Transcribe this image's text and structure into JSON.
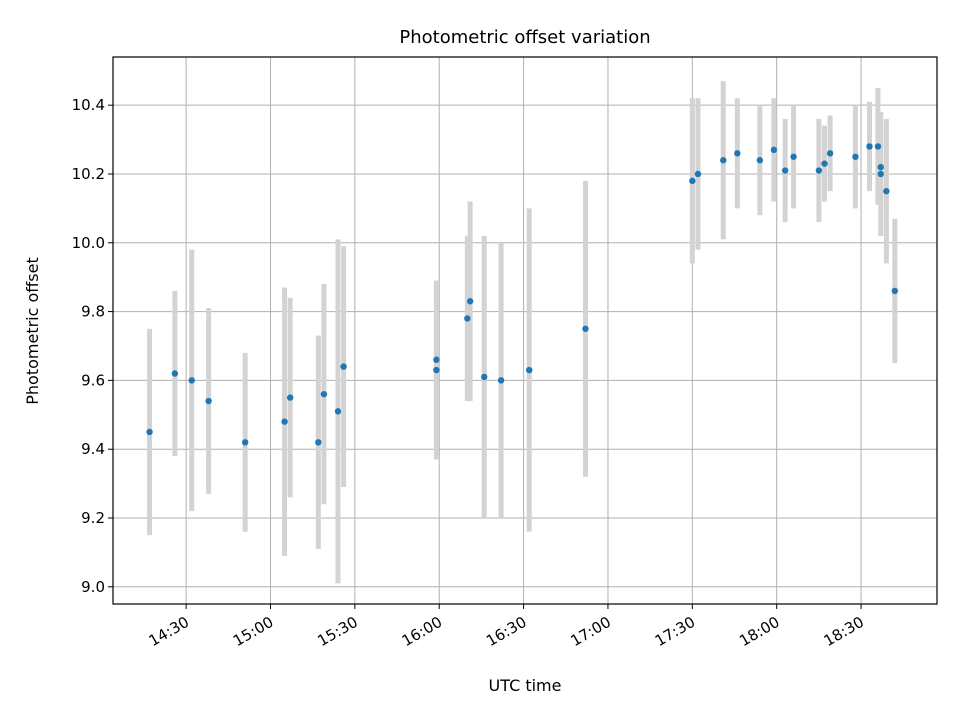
{
  "chart_data": {
    "type": "scatter",
    "title": "Photometric offset variation",
    "xlabel": "UTC time",
    "ylabel": "Photometric offset",
    "grid": true,
    "x_range": [
      "14:04",
      "18:57"
    ],
    "ylim": [
      8.95,
      10.54
    ],
    "x_ticks": [
      "14:30",
      "15:00",
      "15:30",
      "16:00",
      "16:30",
      "17:00",
      "17:30",
      "18:00",
      "18:30"
    ],
    "y_ticks": [
      "9.0",
      "9.2",
      "9.4",
      "9.6",
      "9.8",
      "10.0",
      "10.2",
      "10.4"
    ],
    "colors": {
      "marker": "#1f77b4",
      "errorbar": "#d3d3d3",
      "grid": "#b0b0b0",
      "axis": "#000000"
    },
    "series": [
      {
        "points": [
          {
            "x": "14:17",
            "y": 9.45,
            "err": 0.3
          },
          {
            "x": "14:26",
            "y": 9.62,
            "err": 0.24
          },
          {
            "x": "14:32",
            "y": 9.6,
            "err": 0.38
          },
          {
            "x": "14:38",
            "y": 9.54,
            "err": 0.27
          },
          {
            "x": "14:51",
            "y": 9.42,
            "err": 0.26
          },
          {
            "x": "15:05",
            "y": 9.48,
            "err": 0.39
          },
          {
            "x": "15:07",
            "y": 9.55,
            "err": 0.29
          },
          {
            "x": "15:17",
            "y": 9.42,
            "err": 0.31
          },
          {
            "x": "15:19",
            "y": 9.56,
            "err": 0.32
          },
          {
            "x": "15:24",
            "y": 9.51,
            "err": 0.5
          },
          {
            "x": "15:26",
            "y": 9.64,
            "err": 0.35
          },
          {
            "x": "15:59",
            "y": 9.63,
            "err": 0.26
          },
          {
            "x": "15:59",
            "y": 9.66,
            "err": 0.23
          },
          {
            "x": "16:10",
            "y": 9.78,
            "err": 0.24
          },
          {
            "x": "16:11",
            "y": 9.83,
            "err": 0.29
          },
          {
            "x": "16:16",
            "y": 9.61,
            "err": 0.41
          },
          {
            "x": "16:22",
            "y": 9.6,
            "err": 0.4
          },
          {
            "x": "16:32",
            "y": 9.63,
            "err": 0.47
          },
          {
            "x": "16:52",
            "y": 9.75,
            "err": 0.43
          },
          {
            "x": "17:30",
            "y": 10.18,
            "err": 0.24
          },
          {
            "x": "17:32",
            "y": 10.2,
            "err": 0.22
          },
          {
            "x": "17:41",
            "y": 10.24,
            "err": 0.23
          },
          {
            "x": "17:46",
            "y": 10.26,
            "err": 0.16
          },
          {
            "x": "17:54",
            "y": 10.24,
            "err": 0.16
          },
          {
            "x": "17:59",
            "y": 10.27,
            "err": 0.15
          },
          {
            "x": "18:03",
            "y": 10.21,
            "err": 0.15
          },
          {
            "x": "18:06",
            "y": 10.25,
            "err": 0.15
          },
          {
            "x": "18:15",
            "y": 10.21,
            "err": 0.15
          },
          {
            "x": "18:17",
            "y": 10.23,
            "err": 0.11
          },
          {
            "x": "18:19",
            "y": 10.26,
            "err": 0.11
          },
          {
            "x": "18:28",
            "y": 10.25,
            "err": 0.15
          },
          {
            "x": "18:33",
            "y": 10.28,
            "err": 0.13
          },
          {
            "x": "18:36",
            "y": 10.28,
            "err": 0.17
          },
          {
            "x": "18:37",
            "y": 10.22,
            "err": 0.11
          },
          {
            "x": "18:37",
            "y": 10.2,
            "err": 0.18
          },
          {
            "x": "18:39",
            "y": 10.15,
            "err": 0.21
          },
          {
            "x": "18:42",
            "y": 9.86,
            "err": 0.21
          }
        ]
      }
    ]
  }
}
